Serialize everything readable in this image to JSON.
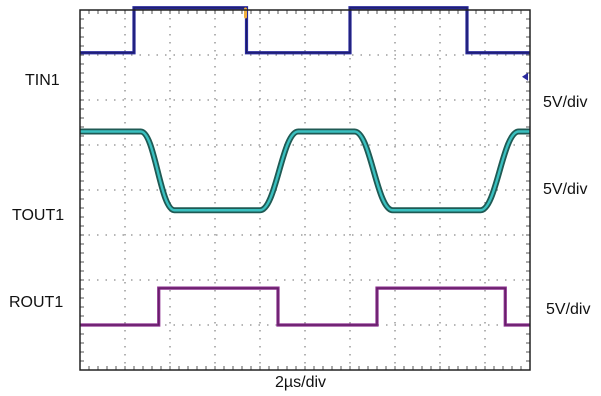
{
  "chart_data": {
    "type": "line",
    "x_scale_label": "2µs/div",
    "divisions": {
      "horizontal": 10,
      "vertical": 8
    },
    "x_range_div": [
      0,
      10
    ],
    "series": [
      {
        "name": "TIN1",
        "scale_label": "5V/div",
        "color": "#2a2a9c",
        "shape": "square",
        "levels_div": {
          "low": 7.05,
          "high": 8.05
        },
        "points": [
          [
            0.0,
            "low"
          ],
          [
            1.2,
            "low"
          ],
          [
            1.2,
            "high"
          ],
          [
            3.7,
            "high"
          ],
          [
            3.7,
            "low"
          ],
          [
            6.0,
            "low"
          ],
          [
            6.0,
            "high"
          ],
          [
            8.6,
            "high"
          ],
          [
            8.6,
            "low"
          ],
          [
            10.0,
            "low"
          ]
        ]
      },
      {
        "name": "TOUT1",
        "scale_label": "5V/div",
        "color": "#3ac0c0",
        "shape": "slewed",
        "levels_div": {
          "low": 3.55,
          "high": 5.3
        },
        "points": [
          [
            0.0,
            "high"
          ],
          [
            1.35,
            "high"
          ],
          [
            2.1,
            "low"
          ],
          [
            4.0,
            "low"
          ],
          [
            4.85,
            "high"
          ],
          [
            6.1,
            "high"
          ],
          [
            6.95,
            "low"
          ],
          [
            8.9,
            "low"
          ],
          [
            9.75,
            "high"
          ],
          [
            10.0,
            "high"
          ]
        ]
      },
      {
        "name": "ROUT1",
        "scale_label": "5V/div",
        "color": "#8a2c8e",
        "shape": "square",
        "levels_div": {
          "low": 1.0,
          "high": 1.82
        },
        "points": [
          [
            0.0,
            "low"
          ],
          [
            1.75,
            "low"
          ],
          [
            1.75,
            "high"
          ],
          [
            4.4,
            "high"
          ],
          [
            4.4,
            "low"
          ],
          [
            6.6,
            "low"
          ],
          [
            6.6,
            "high"
          ],
          [
            9.45,
            "high"
          ],
          [
            9.45,
            "low"
          ],
          [
            10.0,
            "low"
          ]
        ]
      }
    ],
    "trigger_marker_color": "#f0b040",
    "grid": true
  }
}
